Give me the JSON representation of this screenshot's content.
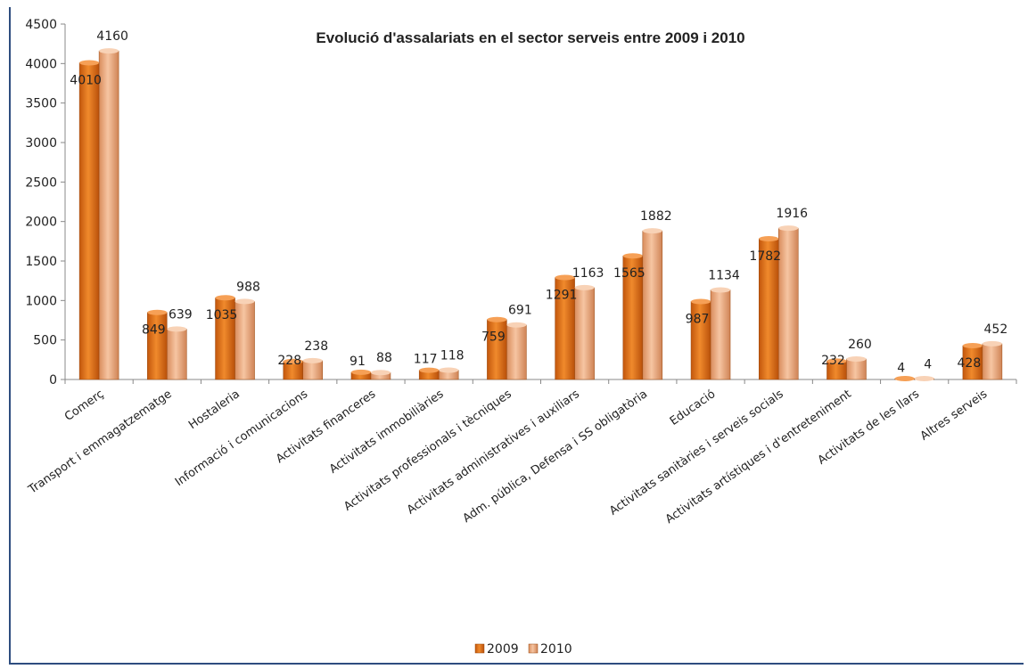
{
  "chart_data": {
    "type": "bar",
    "title": "Evolució d'assalariats en el sector serveis entre 2009 i 2010",
    "xlabel": "",
    "ylabel": "",
    "ylim": [
      0,
      4500
    ],
    "yticks": [
      0,
      500,
      1000,
      1500,
      2000,
      2500,
      3000,
      3500,
      4000,
      4500
    ],
    "grid": false,
    "legend_position": "bottom",
    "categories": [
      "Comerç",
      "Transport i emmagatzematge",
      "Hostaleria",
      "Informació i comunicacions",
      "Activitats financeres",
      "Activitats immobiliàries",
      "Activitats professionals i tècniques",
      "Activitats administratives i auxiliars",
      "Adm. pública, Defensa i SS obligatòria",
      "Educació",
      "Activitats sanitàries i serveis socials",
      "Activitats artístiques i d'entreteniment",
      "Activitats de les llars",
      "Altres serveis"
    ],
    "series": [
      {
        "name": "2009",
        "color": "#e8741a",
        "values": [
          4010,
          849,
          1035,
          228,
          91,
          117,
          759,
          1291,
          1565,
          987,
          1782,
          232,
          4,
          428
        ]
      },
      {
        "name": "2010",
        "color": "#f0a97a",
        "values": [
          4160,
          639,
          988,
          238,
          88,
          118,
          691,
          1163,
          1882,
          1134,
          1916,
          260,
          4,
          452
        ]
      }
    ]
  }
}
